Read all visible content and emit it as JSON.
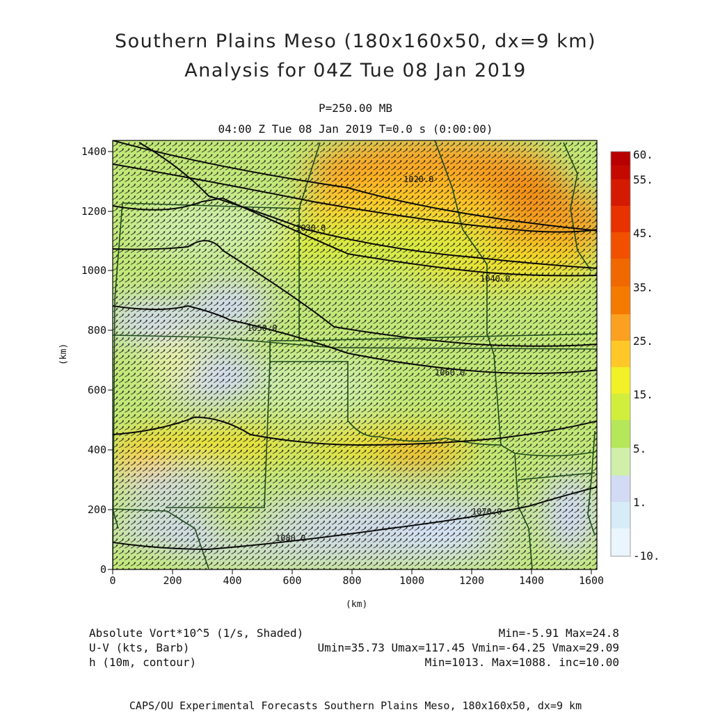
{
  "header": {
    "title_line1": "Southern Plains Meso (180x160x50, dx=9 km)",
    "title_line2": "Analysis for 04Z Tue 08 Jan 2019",
    "level": "P=250.00 MB",
    "valid_time": "04:00 Z Tue 08 Jan 2019    T=0.0 s (0:00:00)"
  },
  "axes": {
    "x_label": "(km)",
    "y_label": "(km)",
    "x_ticks": [
      "0",
      "200",
      "400",
      "600",
      "800",
      "1000",
      "1200",
      "1400",
      "1600"
    ],
    "y_ticks": [
      "0",
      "200",
      "400",
      "600",
      "800",
      "1000",
      "1200",
      "1400"
    ],
    "x_range_km": [
      0,
      1620
    ],
    "y_range_km": [
      0,
      1440
    ]
  },
  "colorbar": {
    "labels": [
      "60.",
      "55.",
      "45.",
      "35.",
      "25.",
      "15.",
      "5.",
      "1.",
      "-10."
    ],
    "colors": [
      "#b80000",
      "#d41a00",
      "#e83200",
      "#f05000",
      "#f57a00",
      "#fba020",
      "#ffc828",
      "#f2f028",
      "#d2ee3c",
      "#b6e65a",
      "#cfefaa",
      "#d2daf4",
      "#d8ecf8",
      "#eaf6fc"
    ]
  },
  "contours": {
    "labels": [
      "1080.0",
      "1070.0",
      "1060.0",
      "1050.0",
      "1040.0",
      "1030.0",
      "1020.0"
    ]
  },
  "footer": {
    "field1_name": "Absolute Vort*10^5 (1/s, Shaded)",
    "field1_stats": "Min=-5.91 Max=24.8",
    "field2_name": "U-V (kts, Barb)",
    "field2_stats": "Umin=35.73 Umax=117.45 Vmin=-64.25 Vmax=29.09",
    "field3_name": "h (10m, contour)",
    "field3_stats": "Min=1013. Max=1088. inc=10.00",
    "credit": "CAPS/OU Experimental Forecasts  Southern Plains Meso, 180x160x50, dx=9 km"
  }
}
